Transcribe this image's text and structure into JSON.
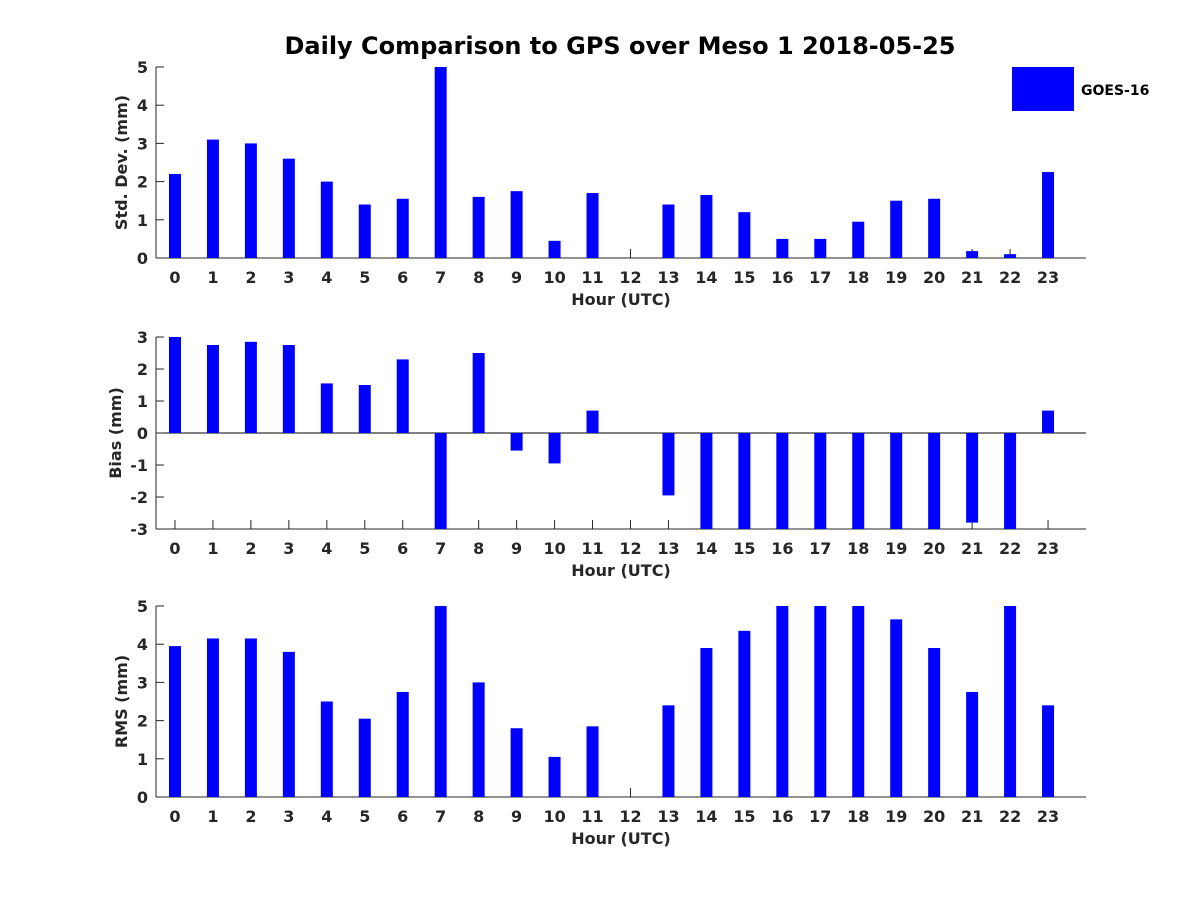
{
  "figure": {
    "title": "Daily Comparison to GPS over Meso 1 2018-05-25",
    "legend": {
      "label": "GOES-16",
      "position": "top-right"
    },
    "bar_color": "#0000ff"
  },
  "chart_data": [
    {
      "type": "bar",
      "title": "Daily Comparison to GPS over Meso 1 2018-05-25",
      "xlabel": "Hour (UTC)",
      "ylabel": "Std. Dev. (mm)",
      "categories": [
        "0",
        "1",
        "2",
        "3",
        "4",
        "5",
        "6",
        "7",
        "8",
        "9",
        "10",
        "11",
        "12",
        "13",
        "14",
        "15",
        "16",
        "17",
        "18",
        "19",
        "20",
        "21",
        "22",
        "23"
      ],
      "ylim": [
        0,
        5
      ],
      "yticks": [
        "0",
        "1",
        "2",
        "3",
        "4",
        "5"
      ],
      "series": [
        {
          "name": "GOES-16",
          "values": [
            2.2,
            3.1,
            3.0,
            2.6,
            2.0,
            1.4,
            1.55,
            5.0,
            1.6,
            1.75,
            0.45,
            1.7,
            null,
            1.4,
            1.65,
            1.2,
            0.5,
            0.5,
            0.95,
            1.5,
            1.55,
            0.18,
            0.1,
            2.25
          ]
        }
      ]
    },
    {
      "type": "bar",
      "xlabel": "Hour (UTC)",
      "ylabel": "Bias (mm)",
      "categories": [
        "0",
        "1",
        "2",
        "3",
        "4",
        "5",
        "6",
        "7",
        "8",
        "9",
        "10",
        "11",
        "12",
        "13",
        "14",
        "15",
        "16",
        "17",
        "18",
        "19",
        "20",
        "21",
        "22",
        "23"
      ],
      "ylim": [
        -3,
        3
      ],
      "yticks": [
        "-3",
        "-2",
        "-1",
        "0",
        "1",
        "2",
        "3"
      ],
      "series": [
        {
          "name": "GOES-16",
          "values": [
            3.0,
            2.75,
            2.85,
            2.75,
            1.55,
            1.5,
            2.3,
            -3.0,
            2.5,
            -0.55,
            -0.95,
            0.7,
            null,
            -1.95,
            -3.0,
            -3.0,
            -3.0,
            -3.0,
            -3.0,
            -3.0,
            -3.0,
            -2.8,
            -3.0,
            0.7
          ]
        }
      ]
    },
    {
      "type": "bar",
      "xlabel": "Hour (UTC)",
      "ylabel": "RMS (mm)",
      "categories": [
        "0",
        "1",
        "2",
        "3",
        "4",
        "5",
        "6",
        "7",
        "8",
        "9",
        "10",
        "11",
        "12",
        "13",
        "14",
        "15",
        "16",
        "17",
        "18",
        "19",
        "20",
        "21",
        "22",
        "23"
      ],
      "ylim": [
        0,
        5
      ],
      "yticks": [
        "0",
        "1",
        "2",
        "3",
        "4",
        "5"
      ],
      "series": [
        {
          "name": "GOES-16",
          "values": [
            3.95,
            4.15,
            4.15,
            3.8,
            2.5,
            2.05,
            2.75,
            5.0,
            3.0,
            1.8,
            1.05,
            1.85,
            null,
            2.4,
            3.9,
            4.35,
            5.0,
            5.0,
            5.0,
            4.65,
            3.9,
            2.75,
            5.0,
            2.4
          ]
        }
      ]
    }
  ]
}
